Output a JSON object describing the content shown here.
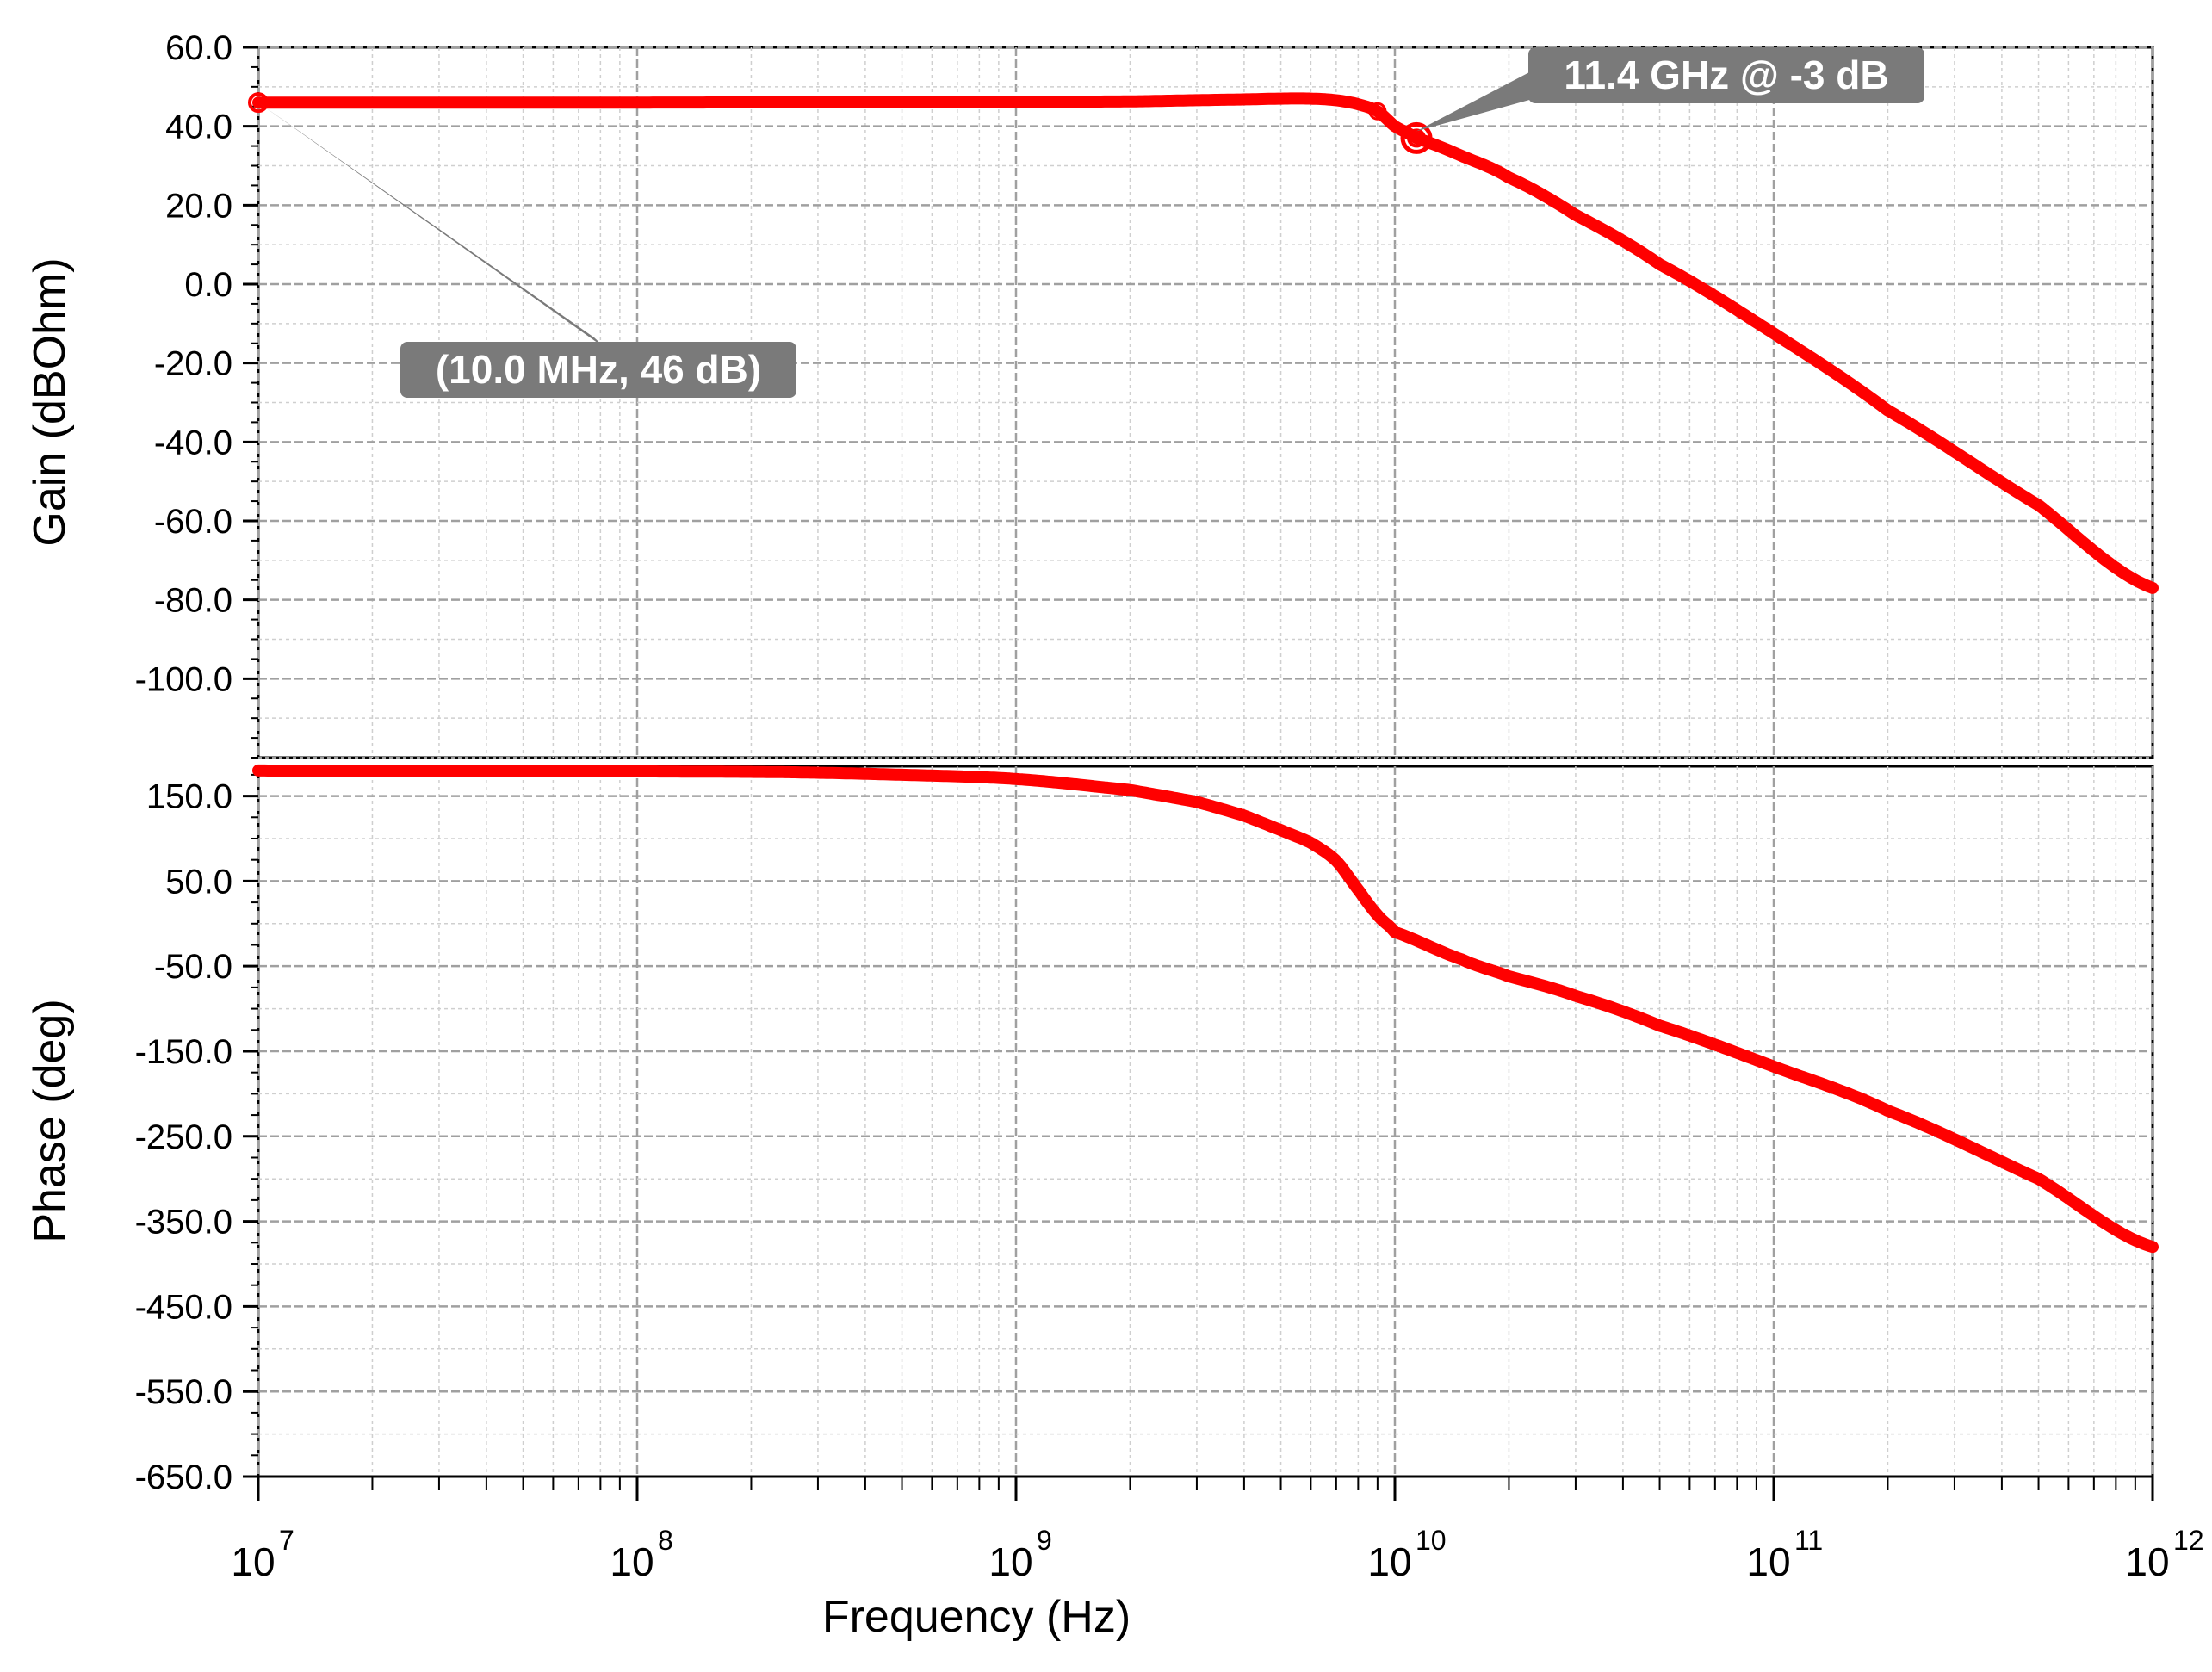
{
  "chart_data": [
    {
      "type": "line",
      "panel": "gain",
      "ylabel": "Gain (dBOhm)",
      "xlabel": "",
      "xscale": "log",
      "xlim": [
        10000000.0,
        1000000000000.0
      ],
      "ylim": [
        -120,
        60
      ],
      "yticks": [
        60,
        40,
        20,
        0,
        -20,
        -40,
        -60,
        -80,
        -100
      ],
      "ytick_labels": [
        "60.0",
        "40.0",
        "20.0",
        "0.0",
        "-20.0",
        "-40.0",
        "-60.0",
        "-80.0",
        "-100.0"
      ],
      "grid": true,
      "line_color": "#ff0000",
      "series": [
        {
          "x": [
            10000000.0,
            100000000.0,
            1000000000.0,
            2000000000.0,
            3000000000.0,
            4000000000.0,
            5000000000.0,
            6000000000.0,
            7000000000.0,
            8000000000.0,
            9000000000.0,
            10000000000.0,
            11400000000.0,
            15000000000.0,
            20000000000.0,
            30000000000.0,
            50000000000.0,
            100000000000.0,
            200000000000.0,
            500000000000.0,
            1000000000000.0
          ],
          "y": [
            46,
            46,
            46.2,
            46.3,
            46.6,
            46.8,
            47.0,
            47.0,
            46.6,
            45.6,
            43.8,
            40.0,
            37.0,
            32.5,
            27.0,
            17.5,
            5.0,
            -12.5,
            -32.0,
            -56.0,
            -77.0
          ]
        }
      ],
      "annotations": [
        {
          "text": "(10.0 MHz, 46 dB)",
          "x": 10000000.0,
          "y": 46
        },
        {
          "text": "11.4 GHz @ -3 dB",
          "x": 11400000000.0,
          "y": 37
        }
      ]
    },
    {
      "type": "line",
      "panel": "phase",
      "ylabel": "Phase (deg)",
      "xlabel": "Frequency (Hz)",
      "xscale": "log",
      "xlim": [
        10000000.0,
        1000000000000.0
      ],
      "ylim": [
        -650,
        185
      ],
      "yticks": [
        150,
        50,
        -50,
        -150,
        -250,
        -350,
        -450,
        -550,
        -650
      ],
      "ytick_labels": [
        "150.0",
        "50.0",
        "-50.0",
        "-150.0",
        "-250.0",
        "-350.0",
        "-450.0",
        "-550.0",
        "-650.0"
      ],
      "xtick_labels": [
        "10",
        "10",
        "10",
        "10",
        "10",
        "10"
      ],
      "xtick_exponents": [
        "7",
        "8",
        "9",
        "10",
        "11",
        "12"
      ],
      "grid": true,
      "line_color": "#ff0000",
      "series": [
        {
          "x": [
            10000000.0,
            100000000.0,
            250000000.0,
            500000000.0,
            1000000000.0,
            2000000000.0,
            3000000000.0,
            4000000000.0,
            5000000000.0,
            6000000000.0,
            7000000000.0,
            8000000000.0,
            9000000000.0,
            10000000000.0,
            15000000000.0,
            20000000000.0,
            30000000000.0,
            50000000000.0,
            100000000000.0,
            200000000000.0,
            500000000000.0,
            1000000000000.0
          ],
          "y": [
            180,
            179,
            178,
            175,
            170,
            157,
            143,
            127,
            110,
            95,
            74,
            40,
            10,
            -10,
            -42,
            -62,
            -85,
            -120,
            -168,
            -220,
            -300,
            -380
          ]
        }
      ]
    }
  ]
}
